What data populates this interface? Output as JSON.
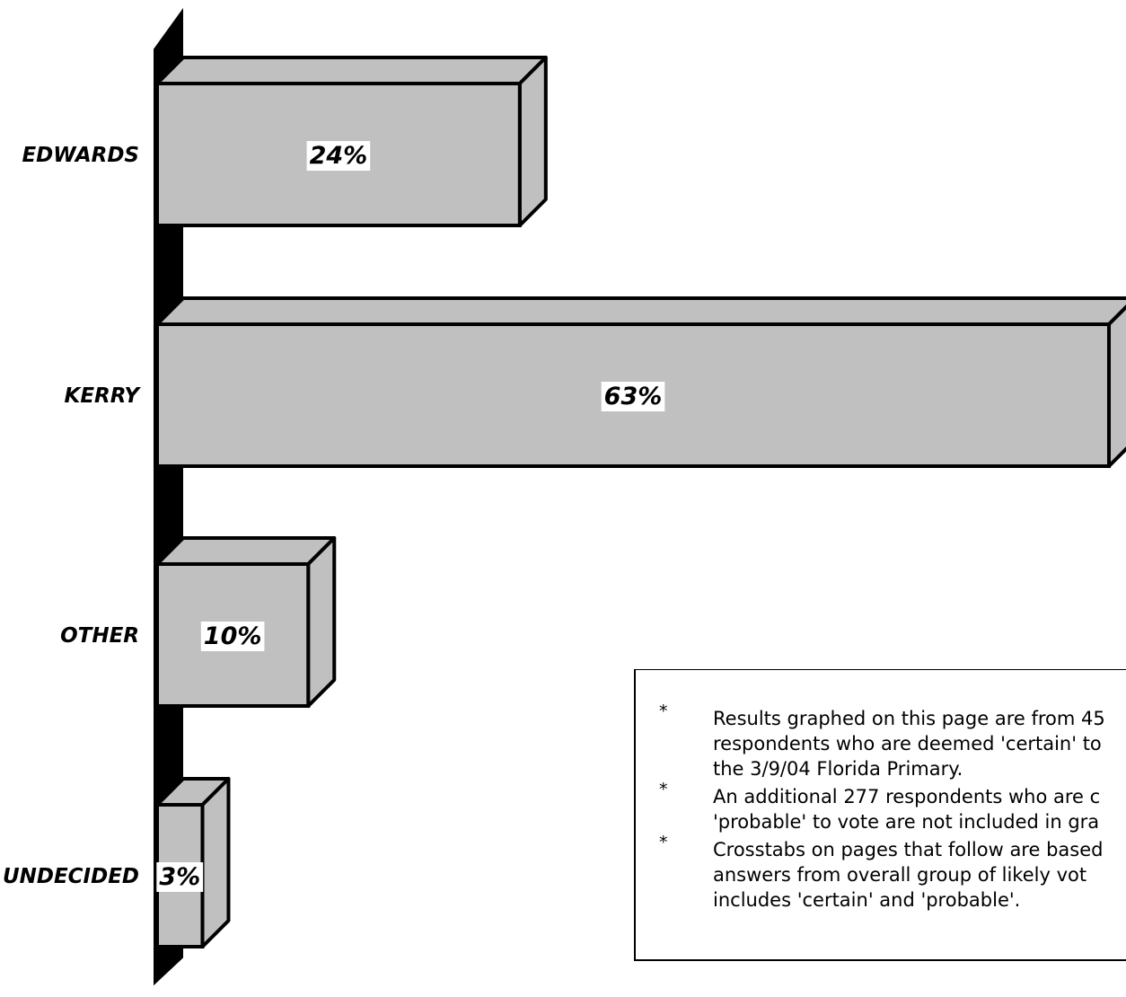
{
  "chart_data": {
    "type": "bar",
    "orientation": "horizontal",
    "style": "3d",
    "categories": [
      "EDWARDS",
      "KERRY",
      "OTHER",
      "UNDECIDED"
    ],
    "values": [
      24,
      63,
      10,
      3
    ],
    "value_labels": [
      "24%",
      "63%",
      "10%",
      "3%"
    ],
    "title": "",
    "xlabel": "",
    "ylabel": "",
    "xlim": [
      0,
      63
    ],
    "grid": false,
    "legend": "none",
    "colors": {
      "bar_face": "#c0c0c0",
      "bar_outline": "#000000",
      "axis_wall": "#000000",
      "label_background": "#ffffff"
    }
  },
  "notes": [
    {
      "bullet": "*",
      "lines": [
        "Results graphed on this page are from 45",
        "respondents who are deemed 'certain' to",
        "the 3/9/04 Florida Primary."
      ]
    },
    {
      "bullet": "*",
      "lines": [
        "An additional 277 respondents who are c",
        "'probable' to vote are not included in gra"
      ]
    },
    {
      "bullet": "*",
      "lines": [
        "Crosstabs on pages that follow are based",
        "answers from overall group of likely vot",
        "includes 'certain' and 'probable'."
      ]
    }
  ]
}
